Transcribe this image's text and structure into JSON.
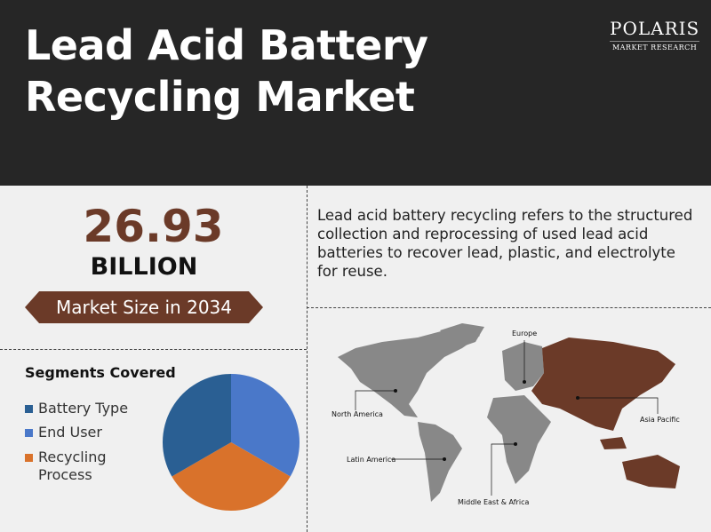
{
  "header": {
    "title_line1": "Lead Acid Battery",
    "title_line2": "Recycling Market",
    "logo_name": "POLARIS",
    "logo_tagline": "MARKET RESEARCH"
  },
  "market": {
    "value": "26.93",
    "unit": "BILLION",
    "label": "Market Size in 2034"
  },
  "description": "Lead acid battery recycling refers to the structured collection and reprocessing of used lead acid batteries to recover lead, plastic, and electrolyte for reuse.",
  "segments": {
    "title": "Segments Covered",
    "items": [
      {
        "label": "Battery Type",
        "color": "#2a5f93"
      },
      {
        "label": "End User",
        "color": "#4a78c9"
      },
      {
        "label": "Recycling Process",
        "color": "#d9722b"
      }
    ]
  },
  "chart_data": {
    "type": "pie",
    "categories": [
      "End User",
      "Recycling Process",
      "Battery Type"
    ],
    "values": [
      33.3,
      33.3,
      33.3
    ],
    "colors": [
      "#4a78c9",
      "#d9722b",
      "#2a5f93"
    ]
  },
  "map": {
    "regions": [
      "Europe",
      "North America",
      "Latin America",
      "Middle East & Africa",
      "Asia Pacific"
    ],
    "highlight_color": "#6b3a28",
    "base_color": "#888888"
  }
}
